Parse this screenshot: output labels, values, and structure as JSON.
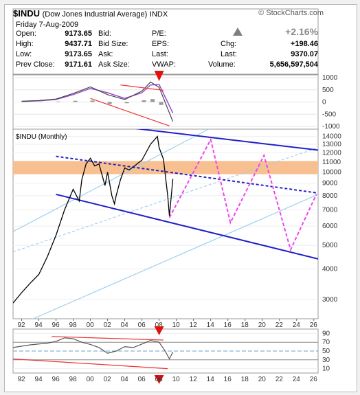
{
  "header": {
    "symbol": "$INDU",
    "description": "(Dow Jones Industrial Average)",
    "exchange": "INDX",
    "brand": "© StockCharts.com",
    "date": "Friday  7-Aug-2009",
    "change_pct": "+2.16%"
  },
  "quote": {
    "left": [
      {
        "label": "Open:",
        "value": "9173.65"
      },
      {
        "label": "High:",
        "value": "9437.71"
      },
      {
        "label": "Low:",
        "value": "9173.65"
      },
      {
        "label": "Prev Close:",
        "value": "9171.61"
      }
    ],
    "middle": [
      "Bid:",
      "Bid Size:",
      "Ask:",
      "Ask Size:"
    ],
    "right_labels": [
      "P/E:",
      "EPS:",
      "Last:",
      "VWAP:"
    ],
    "far": [
      {
        "label": "Chg:",
        "value": "+198.46"
      },
      {
        "label": "Last:",
        "value": "9370.07"
      },
      {
        "label": "Volume:",
        "value": "5,656,597,504"
      }
    ]
  },
  "chart_data": [
    {
      "type": "line",
      "panel": "macd",
      "y_ticks": [
        "1000",
        "500",
        "0",
        "-500",
        "-1000"
      ],
      "ylim": [
        -1000,
        1000
      ],
      "x": [
        1992,
        1994,
        1996,
        1998,
        2000,
        2002,
        2004,
        2006,
        2007,
        2008,
        2009.6
      ],
      "macd": [
        30,
        60,
        120,
        350,
        620,
        300,
        100,
        450,
        820,
        600,
        -800
      ],
      "signal": [
        20,
        50,
        100,
        300,
        560,
        380,
        150,
        380,
        700,
        720,
        -450
      ]
    },
    {
      "type": "line",
      "panel": "price",
      "title": "$INDU (Monthly)",
      "log_scale": true,
      "y_ticks": [
        "14000",
        "13000",
        "12000",
        "11000",
        "10000",
        "9000",
        "8000",
        "7000",
        "6000",
        "5000",
        "4000",
        "3000"
      ],
      "ylim": [
        2500,
        15000
      ],
      "x_ticks": [
        "92",
        "94",
        "96",
        "98",
        "00",
        "02",
        "04",
        "06",
        "08",
        "10",
        "12",
        "14",
        "16",
        "18",
        "20",
        "22",
        "24",
        "26"
      ],
      "x_range": [
        1991,
        2026.5
      ],
      "price": {
        "x": [
          1991,
          1992,
          1993,
          1994,
          1995,
          1996,
          1997,
          1998,
          1998.7,
          1999,
          1999.5,
          2000,
          2000.5,
          2001,
          2001.7,
          2002,
          2002.5,
          2002.8,
          2003,
          2003.5,
          2004,
          2004.5,
          2005,
          2006,
          2007,
          2007.8,
          2008,
          2008.5,
          2009,
          2009.2,
          2009.6
        ],
        "y": [
          2900,
          3200,
          3500,
          3800,
          4500,
          5500,
          7000,
          8500,
          7600,
          9300,
          10800,
          11400,
          10600,
          10800,
          8800,
          10000,
          8000,
          7400,
          8000,
          9300,
          10400,
          10200,
          10500,
          11200,
          13000,
          14000,
          12600,
          11300,
          8000,
          6600,
          9370
        ]
      },
      "channel": {
        "upper": {
          "x": [
            1996,
            2026.5
          ],
          "y": [
            16500,
            12300
          ]
        },
        "mid": {
          "x": [
            1996,
            2026.5
          ],
          "y": [
            11600,
            8200
          ]
        },
        "lower": {
          "x": [
            1996,
            2026.5
          ],
          "y": [
            8100,
            4400
          ]
        }
      },
      "support_lines": [
        {
          "x": [
            1991,
            2026.5
          ],
          "y": [
            2300,
            8100
          ]
        },
        {
          "x": [
            1991,
            2016
          ],
          "y": [
            5700,
            16500
          ]
        }
      ],
      "resistance_band": [
        9800,
        11100
      ],
      "projection": {
        "x": [
          2009.2,
          2014,
          2016.3,
          2020.2,
          2023.3,
          2026.3
        ],
        "y": [
          6500,
          13600,
          6200,
          11700,
          4800,
          8100
        ]
      },
      "arrow_year": 2008
    },
    {
      "type": "line",
      "panel": "rsi",
      "y_ticks": [
        "90",
        "70",
        "50",
        "30",
        "10"
      ],
      "ylim": [
        0,
        100
      ],
      "x": [
        1991,
        1993,
        1995,
        1996,
        1997,
        1998,
        1999,
        2000,
        2001,
        2002,
        2003,
        2004,
        2005,
        2006,
        2007,
        2008,
        2008.7,
        2009.2,
        2009.6
      ],
      "y": [
        58,
        64,
        68,
        72,
        80,
        78,
        70,
        65,
        58,
        45,
        50,
        60,
        58,
        66,
        74,
        70,
        50,
        32,
        48
      ]
    }
  ],
  "colors": {
    "channel": "#1f1fcc",
    "projection": "#ee44ee",
    "trend_red": "#ee3333",
    "light_blue": "#9fd0ee",
    "band": "#f8c090",
    "macd": "#444444",
    "signal": "#9a4ad8"
  }
}
